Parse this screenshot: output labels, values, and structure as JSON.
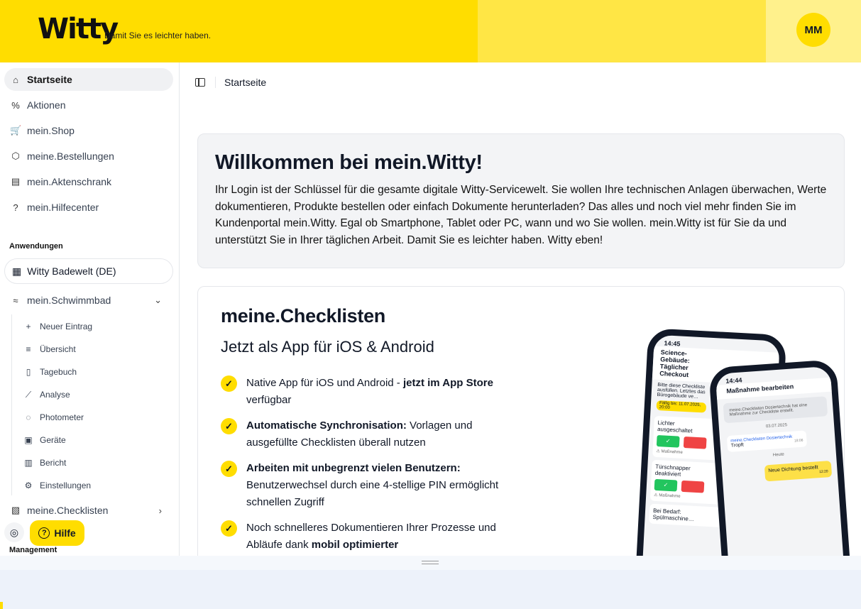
{
  "header": {
    "logo": "Witty",
    "slogan": "Damit Sie es leichter haben.",
    "avatar": "MM"
  },
  "sidebar": {
    "items": [
      {
        "label": "Startseite",
        "icon": "home-icon",
        "glyph": "⌂"
      },
      {
        "label": "Aktionen",
        "icon": "percent-icon",
        "glyph": "%"
      },
      {
        "label": "mein.Shop",
        "icon": "cart-icon",
        "glyph": "🛒"
      },
      {
        "label": "meine.Bestellungen",
        "icon": "package-icon",
        "glyph": "⬡"
      },
      {
        "label": "mein.Aktenschrank",
        "icon": "cabinet-icon",
        "glyph": "▤"
      },
      {
        "label": "mein.Hilfecenter",
        "icon": "help-circle-icon",
        "glyph": "?"
      }
    ],
    "apps_heading": "Anwendungen",
    "app_selector": "Witty Badewelt (DE)",
    "schwimmbad": "mein.Schwimmbad",
    "sub_items": [
      {
        "label": "Neuer Eintrag",
        "glyph": "+"
      },
      {
        "label": "Übersicht",
        "glyph": "≡"
      },
      {
        "label": "Tagebuch",
        "glyph": "▯"
      },
      {
        "label": "Analyse",
        "glyph": "⟋"
      },
      {
        "label": "Photometer",
        "glyph": "◌"
      },
      {
        "label": "Geräte",
        "glyph": "▣"
      },
      {
        "label": "Bericht",
        "glyph": "▥"
      },
      {
        "label": "Einstellungen",
        "glyph": "⚙"
      }
    ],
    "checklisten": "meine.Checklisten",
    "management_heading": "Management",
    "help_label": "Hilfe"
  },
  "main": {
    "breadcrumb": "Startseite",
    "welcome": {
      "title": "Willkommen bei mein.Witty!",
      "text": "Ihr Login ist der Schlüssel für die gesamte digitale Witty-Servicewelt. Sie wollen Ihre technischen Anlagen überwachen, Werte dokumentieren, Produkte bestellen oder einfach Dokumente herunterladen? Das alles und noch viel mehr finden Sie im Kundenportal mein.Witty. Egal ob Smartphone, Tablet oder PC, wann und wo Sie wollen. mein.Witty ist für Sie da und unterstützt Sie in Ihrer täglichen Arbeit. Damit Sie es leichter haben. Witty eben!"
    },
    "checklists": {
      "title": "meine.Checklisten",
      "subtitle": "Jetzt als App für iOS & Android",
      "features": [
        {
          "pre": "Native App für iOS und Android - ",
          "bold": "jetzt im App Store",
          "post": " verfügbar"
        },
        {
          "pre": "",
          "bold": "Automatische Synchronisation:",
          "post": " Vorlagen und ausgefüllte Checklisten überall nutzen"
        },
        {
          "pre": "",
          "bold": "Arbeiten mit unbegrenzt vielen Benutzern:",
          "post": " Benutzerwechsel durch eine 4-stellige PIN ermöglicht schnellen Zugriff"
        },
        {
          "pre": "Noch schnelleres Dokumentieren Ihrer Prozesse und Abläufe dank ",
          "bold": "mobil optimierter",
          "post": ""
        }
      ],
      "phone1": {
        "time": "14:45",
        "title": "Science-Gebäude: Täglicher Checkout",
        "intro": "Bitte diese Checkliste ausfüllen. Letztes das Bürogebäude ve…",
        "due": "Fällig bis: 11.07.2025, 20:00",
        "item1": "Lichter ausgeschaltet",
        "item2": "Türschnapper deaktiviert",
        "action": "⚠ Maßnahme",
        "item3": "Bei Bedarf: Spülmaschine…"
      },
      "phone2": {
        "time": "14:44",
        "title": "Maßnahme bearbeiten",
        "note": "meine.Checklisten Dosiertechnik hat eine Maßnahme zur Checkliste erstellt.",
        "date": "03.07.2025",
        "sender": "meine.Checklisten Dosiertechnik",
        "msg": "Tropft",
        "msg_time": "18:06",
        "today": "Heute",
        "reply": "Neue Dichtung bestellt",
        "reply_time": "12:20"
      }
    }
  },
  "colors": {
    "brand_yellow": "#ffdd00"
  }
}
